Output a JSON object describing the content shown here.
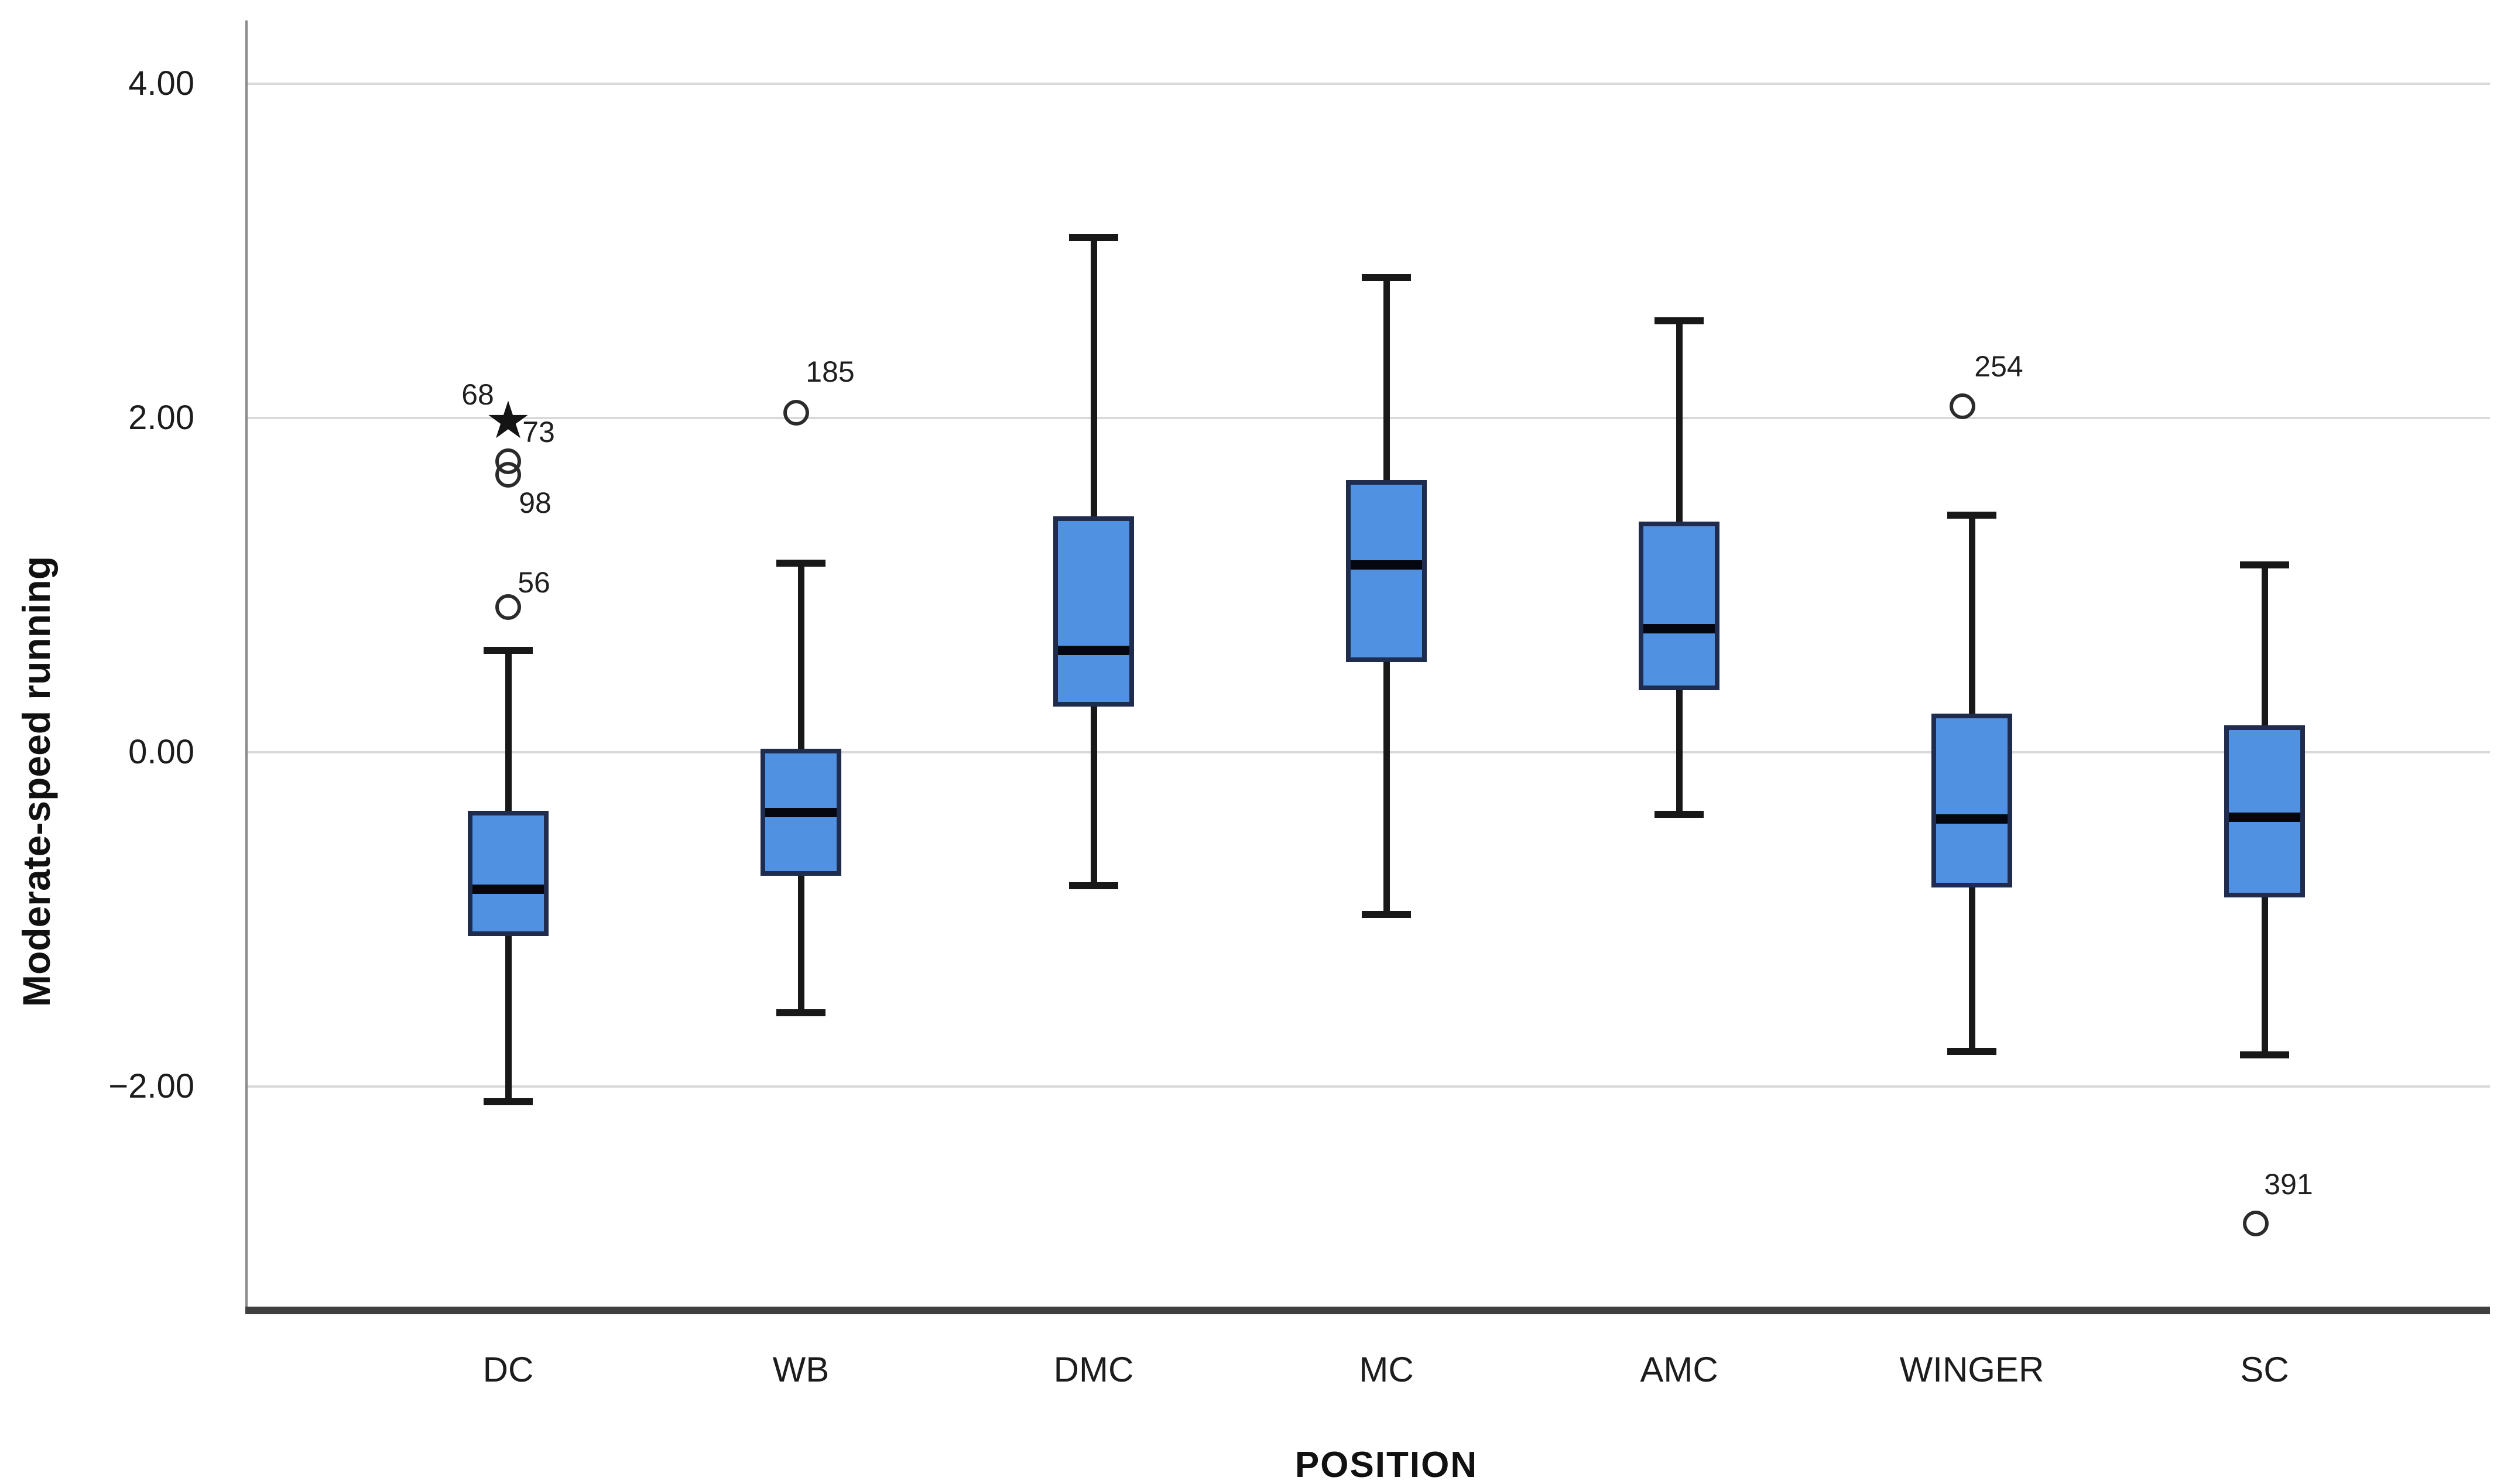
{
  "chart_data": {
    "type": "boxplot",
    "title": "",
    "xlabel": "POSITION",
    "ylabel": "Moderate-speed running",
    "ylim": [
      -3.35,
      4.4
    ],
    "yticks": [
      4.0,
      2.0,
      0.0,
      -2.0
    ],
    "ytick_labels": [
      "4.00",
      "2.00",
      "0.00",
      "−2.00"
    ],
    "grid": "horizontal-only",
    "legend": "none",
    "categories": [
      "DC",
      "WB",
      "DMC",
      "MC",
      "AMC",
      "WINGER",
      "SC"
    ],
    "series": [
      {
        "category": "DC",
        "whisker_low": -2.09,
        "q1": -1.1,
        "median": -0.82,
        "q3": -0.35,
        "whisker_high": 0.61,
        "outliers": [
          {
            "case": "56",
            "value": 0.87,
            "marker": "circle",
            "marker_dx": 0,
            "label_dx": 44,
            "label_dy": -42
          },
          {
            "case": "98",
            "value": 1.66,
            "marker": "circle",
            "marker_dx": 0,
            "label_dx": 46,
            "label_dy": 48
          },
          {
            "case": "68",
            "value": 1.74,
            "marker": "circle",
            "marker_dx": 0,
            "label_dx": -52,
            "label_dy": -114
          },
          {
            "case": "73",
            "value": 1.95,
            "marker": "star",
            "marker_dx": 0,
            "label_dx": 52,
            "label_dy": 10
          }
        ]
      },
      {
        "category": "WB",
        "whisker_low": -1.56,
        "q1": -0.74,
        "median": -0.36,
        "q3": 0.02,
        "whisker_high": 1.13,
        "outliers": [
          {
            "case": "185",
            "value": 2.03,
            "marker": "circle",
            "marker_dx": -8,
            "label_dx": 58,
            "label_dy": -70
          }
        ]
      },
      {
        "category": "DMC",
        "whisker_low": -0.8,
        "q1": 0.27,
        "median": 0.61,
        "q3": 1.41,
        "whisker_high": 3.08,
        "outliers": []
      },
      {
        "category": "MC",
        "whisker_low": -0.97,
        "q1": 0.54,
        "median": 1.12,
        "q3": 1.63,
        "whisker_high": 2.84,
        "outliers": []
      },
      {
        "category": "AMC",
        "whisker_low": -0.37,
        "q1": 0.37,
        "median": 0.74,
        "q3": 1.38,
        "whisker_high": 2.58,
        "outliers": []
      },
      {
        "category": "WINGER",
        "whisker_low": -1.79,
        "q1": -0.81,
        "median": -0.4,
        "q3": 0.23,
        "whisker_high": 1.42,
        "outliers": [
          {
            "case": "254",
            "value": 2.07,
            "marker": "circle",
            "marker_dx": -16,
            "label_dx": 62,
            "label_dy": -68
          }
        ]
      },
      {
        "category": "SC",
        "whisker_low": -1.81,
        "q1": -0.87,
        "median": -0.39,
        "q3": 0.16,
        "whisker_high": 1.12,
        "outliers": [
          {
            "case": "391",
            "value": -2.82,
            "marker": "circle",
            "marker_dx": -15,
            "label_dx": 56,
            "label_dy": -67
          }
        ]
      }
    ],
    "style": {
      "box_fill": "#5191e1",
      "box_border": "#1f2c4d",
      "median_color": "#04070f",
      "whisker_color": "#181818",
      "outlier_color": "#2b2b2b",
      "grid_color": "#d9d9d9",
      "y_axis_color": "#8a8a8a",
      "x_axis_color": "#3f3f3f",
      "text_color": "#1c1c1c"
    }
  }
}
